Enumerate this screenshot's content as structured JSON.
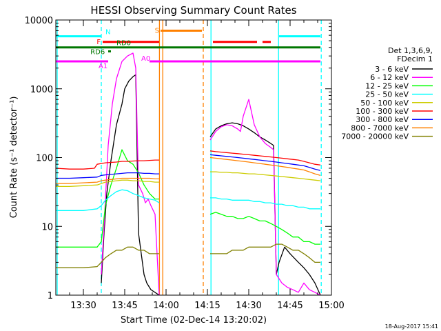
{
  "chart_data": {
    "type": "line",
    "title": "HESSI Observing Summary Count Rates",
    "xlabel": "Start Time (02-Dec-14 13:20:02)",
    "ylabel": "Count Rate (s⁻¹ detector⁻¹)",
    "ylog": true,
    "ylim": [
      1,
      10000
    ],
    "xlim_minutes": [
      20,
      120
    ],
    "x_ticks": [
      {
        "m": 30,
        "label": "13:30"
      },
      {
        "m": 45,
        "label": "13:45"
      },
      {
        "m": 60,
        "label": "14:00"
      },
      {
        "m": 75,
        "label": "14:15"
      },
      {
        "m": 90,
        "label": "14:30"
      },
      {
        "m": 105,
        "label": "14:45"
      },
      {
        "m": 120,
        "label": "15:00"
      }
    ],
    "y_ticks": [
      {
        "v": 1,
        "label": "1"
      },
      {
        "v": 10,
        "label": "10"
      },
      {
        "v": 100,
        "label": "100"
      },
      {
        "v": 1000,
        "label": "1000"
      },
      {
        "v": 10000,
        "label": "10000"
      }
    ],
    "legend_title": [
      "Det 1,3,6,9,",
      "FDecim 1"
    ],
    "legend_position": "right",
    "series": [
      {
        "name": "3 - 6 keV",
        "color": "#000000",
        "x": [
          36.5,
          37.5,
          38.5,
          40,
          42,
          44,
          45,
          46.5,
          48,
          49,
          50,
          51,
          52,
          53,
          54.5,
          57.5
        ],
        "y": [
          1.5,
          8,
          30,
          90,
          300,
          600,
          1000,
          1300,
          1500,
          1600,
          8,
          4,
          2,
          1.5,
          1.2,
          1
        ],
        "x2": [
          76,
          78,
          80,
          82,
          84,
          86,
          88,
          90,
          92,
          94,
          96,
          98,
          99,
          100,
          101,
          103,
          105,
          108,
          110,
          112,
          114,
          116
        ],
        "y2": [
          200,
          260,
          290,
          310,
          320,
          310,
          290,
          260,
          230,
          200,
          180,
          160,
          150,
          2,
          3,
          5,
          4,
          3,
          2.5,
          2,
          1.5,
          1
        ]
      },
      {
        "name": "6 - 12 keV",
        "color": "#ff00ff",
        "x": [
          36.5,
          37.5,
          39,
          40.5,
          42,
          44,
          46,
          48,
          49,
          50,
          51.5,
          52.5,
          53.5,
          54.5,
          56,
          57.5
        ],
        "y": [
          2,
          10,
          150,
          600,
          1400,
          2500,
          3000,
          3300,
          2000,
          40,
          30,
          22,
          25,
          20,
          15,
          1
        ],
        "x2": [
          76,
          78,
          80,
          82,
          84,
          86,
          87,
          88,
          90,
          92,
          94,
          96,
          98,
          99,
          100,
          102,
          104,
          106,
          108,
          110,
          112,
          114,
          116
        ],
        "y2": [
          180,
          240,
          280,
          300,
          290,
          260,
          240,
          400,
          700,
          300,
          200,
          160,
          140,
          130,
          2,
          1.5,
          1.3,
          1.2,
          1.1,
          1.5,
          1.2,
          1.1,
          1
        ]
      },
      {
        "name": "12 - 25 keV",
        "color": "#00ff00",
        "x": [
          20,
          25,
          30,
          35,
          36.5,
          38,
          40,
          42,
          44,
          46,
          48,
          50,
          52,
          54,
          56,
          57.5
        ],
        "y": [
          5,
          5,
          5,
          5,
          6,
          20,
          40,
          70,
          130,
          90,
          80,
          60,
          40,
          30,
          25,
          25
        ],
        "x2": [
          76,
          78,
          80,
          82,
          84,
          86,
          88,
          90,
          92,
          94,
          96,
          98,
          100,
          102,
          104,
          106,
          108,
          110,
          112,
          114,
          116
        ],
        "y2": [
          15,
          16,
          15,
          14,
          14,
          13,
          13,
          14,
          13,
          12,
          12,
          11,
          10,
          9,
          8,
          7,
          7,
          6,
          6,
          5.5,
          5.5
        ]
      },
      {
        "name": "25 - 50 keV",
        "color": "#00ffff",
        "x": [
          20,
          25,
          30,
          35,
          36.5,
          38,
          40,
          42,
          44,
          46,
          48,
          50,
          52,
          54,
          56,
          57.5
        ],
        "y": [
          17,
          17,
          17,
          18,
          20,
          24,
          28,
          32,
          34,
          33,
          30,
          28,
          26,
          25,
          24,
          22
        ],
        "x2": [
          76,
          78,
          80,
          82,
          84,
          86,
          88,
          90,
          92,
          94,
          96,
          98,
          100,
          102,
          104,
          106,
          108,
          110,
          112,
          114,
          116
        ],
        "y2": [
          26,
          26,
          25,
          25,
          24,
          24,
          24,
          24,
          23,
          23,
          22,
          22,
          21,
          21,
          20,
          20,
          19,
          19,
          18,
          18,
          18
        ]
      },
      {
        "name": "50 - 100 keV",
        "color": "#cccc00",
        "x": [
          20,
          25,
          30,
          35,
          36.5,
          38,
          40,
          42,
          44,
          46,
          48,
          50,
          52,
          54,
          56,
          57.5
        ],
        "y": [
          38,
          38,
          39,
          40,
          42,
          44,
          45,
          46,
          47,
          47,
          46,
          46,
          45,
          45,
          44,
          44
        ],
        "x2": [
          76,
          78,
          80,
          82,
          84,
          86,
          88,
          90,
          92,
          94,
          96,
          98,
          100,
          102,
          104,
          106,
          108,
          110,
          112,
          114,
          116
        ],
        "y2": [
          62,
          62,
          61,
          61,
          60,
          60,
          59,
          58,
          58,
          57,
          56,
          55,
          54,
          53,
          52,
          51,
          50,
          49,
          48,
          47,
          46
        ]
      },
      {
        "name": "100 - 300 keV",
        "color": "#ff0000",
        "x": [
          20,
          25,
          30,
          34,
          35,
          36.5,
          38,
          40,
          42,
          44,
          46,
          48,
          50,
          52,
          54,
          56,
          57.5
        ],
        "y": [
          70,
          68,
          68,
          70,
          80,
          82,
          84,
          85,
          86,
          88,
          88,
          89,
          90,
          90,
          91,
          92,
          92
        ],
        "x2": [
          76,
          78,
          80,
          82,
          84,
          86,
          88,
          90,
          92,
          94,
          96,
          98,
          100,
          102,
          104,
          106,
          108,
          110,
          112,
          114,
          116
        ],
        "y2": [
          125,
          122,
          120,
          118,
          116,
          114,
          112,
          110,
          108,
          106,
          104,
          102,
          100,
          98,
          96,
          94,
          92,
          88,
          84,
          80,
          78
        ]
      },
      {
        "name": "300 - 800 keV",
        "color": "#0000ff",
        "x": [
          20,
          25,
          30,
          35,
          36.5,
          38,
          40,
          42,
          44,
          46,
          48,
          50,
          52,
          54,
          56,
          57.5
        ],
        "y": [
          50,
          50,
          51,
          52,
          55,
          56,
          57,
          58,
          59,
          60,
          60,
          60,
          59,
          59,
          58,
          58
        ],
        "x2": [
          76,
          78,
          80,
          82,
          84,
          86,
          88,
          90,
          92,
          94,
          96,
          98,
          100,
          102,
          104,
          106,
          108,
          110,
          112,
          114,
          116
        ],
        "y2": [
          110,
          108,
          106,
          104,
          102,
          100,
          98,
          96,
          94,
          92,
          90,
          88,
          86,
          84,
          82,
          80,
          78,
          76,
          72,
          68,
          65
        ]
      },
      {
        "name": "800 - 7000 keV",
        "color": "#ff8000",
        "x": [
          20,
          25,
          30,
          35,
          36.5,
          38,
          40,
          42,
          44,
          46,
          48,
          50,
          52,
          54,
          56,
          57.5
        ],
        "y": [
          42,
          42,
          43,
          44,
          46,
          47,
          48,
          49,
          50,
          50,
          50,
          50,
          50,
          50,
          49,
          49
        ],
        "x2": [
          76,
          78,
          80,
          82,
          84,
          86,
          88,
          90,
          92,
          94,
          96,
          98,
          100,
          102,
          104,
          106,
          108,
          110,
          112,
          114,
          116
        ],
        "y2": [
          100,
          98,
          96,
          94,
          92,
          90,
          88,
          86,
          84,
          82,
          80,
          78,
          76,
          74,
          72,
          70,
          68,
          66,
          62,
          58,
          55
        ]
      },
      {
        "name": "7000 - 20000 keV",
        "color": "#808000",
        "x": [
          20,
          25,
          30,
          35,
          36.5,
          38,
          40,
          42,
          44,
          46,
          48,
          50,
          52,
          54,
          56,
          57.5
        ],
        "y": [
          2.5,
          2.5,
          2.5,
          2.6,
          3,
          3.5,
          4,
          4.5,
          4.5,
          5,
          5,
          4.5,
          4.5,
          4,
          4,
          4
        ],
        "x2": [
          76,
          78,
          80,
          82,
          84,
          86,
          88,
          90,
          92,
          94,
          96,
          98,
          100,
          102,
          104,
          106,
          108,
          110,
          112,
          114,
          116
        ],
        "y2": [
          4,
          4,
          4,
          4,
          4.5,
          4.5,
          4.5,
          5,
          5,
          5,
          5,
          5,
          5.5,
          5.5,
          5,
          4.5,
          4.5,
          4,
          3.5,
          3,
          3
        ]
      }
    ],
    "flag_bars": [
      {
        "label": "N",
        "color": "#00ffff",
        "y": 5800,
        "segments": [
          [
            20,
            36.5
          ],
          [
            101,
            116
          ]
        ]
      },
      {
        "label": "S",
        "color": "#ff8000",
        "y": 7000,
        "segments": [
          [
            58,
            73
          ]
        ]
      },
      {
        "label": "F",
        "color": "#ff0000",
        "y": 4800,
        "segments": [
          [
            37,
            57.5
          ],
          [
            77,
            93
          ],
          [
            95,
            98
          ]
        ]
      },
      {
        "label": "RD0",
        "color": "#007700",
        "y": 4000,
        "segments": [
          [
            20,
            116
          ]
        ]
      },
      {
        "label": "RD6",
        "color": "#007700",
        "y": 3500,
        "segments": [
          [
            39,
            40
          ]
        ]
      },
      {
        "label": "A1",
        "color": "#ff00ff",
        "y": 2500,
        "segments": [
          [
            20,
            39
          ]
        ]
      },
      {
        "label": "A0",
        "color": "#ff00ff",
        "y": 2500,
        "segments": [
          [
            54,
            116
          ]
        ]
      }
    ],
    "vlines": [
      {
        "m": 20.5,
        "color": "#00ffff",
        "dashed": false
      },
      {
        "m": 36.5,
        "color": "#00ffff",
        "dashed": true
      },
      {
        "m": 57.6,
        "color": "#ff8000",
        "dashed": false
      },
      {
        "m": 58.8,
        "color": "#ff8000",
        "dashed": false
      },
      {
        "m": 73.5,
        "color": "#ff8000",
        "dashed": true
      },
      {
        "m": 76.3,
        "color": "#00ffff",
        "dashed": false
      },
      {
        "m": 100.8,
        "color": "#00ffff",
        "dashed": false
      },
      {
        "m": 116.3,
        "color": "#00ffff",
        "dashed": true
      }
    ],
    "footer_date": "18-Aug-2017 15:41"
  }
}
